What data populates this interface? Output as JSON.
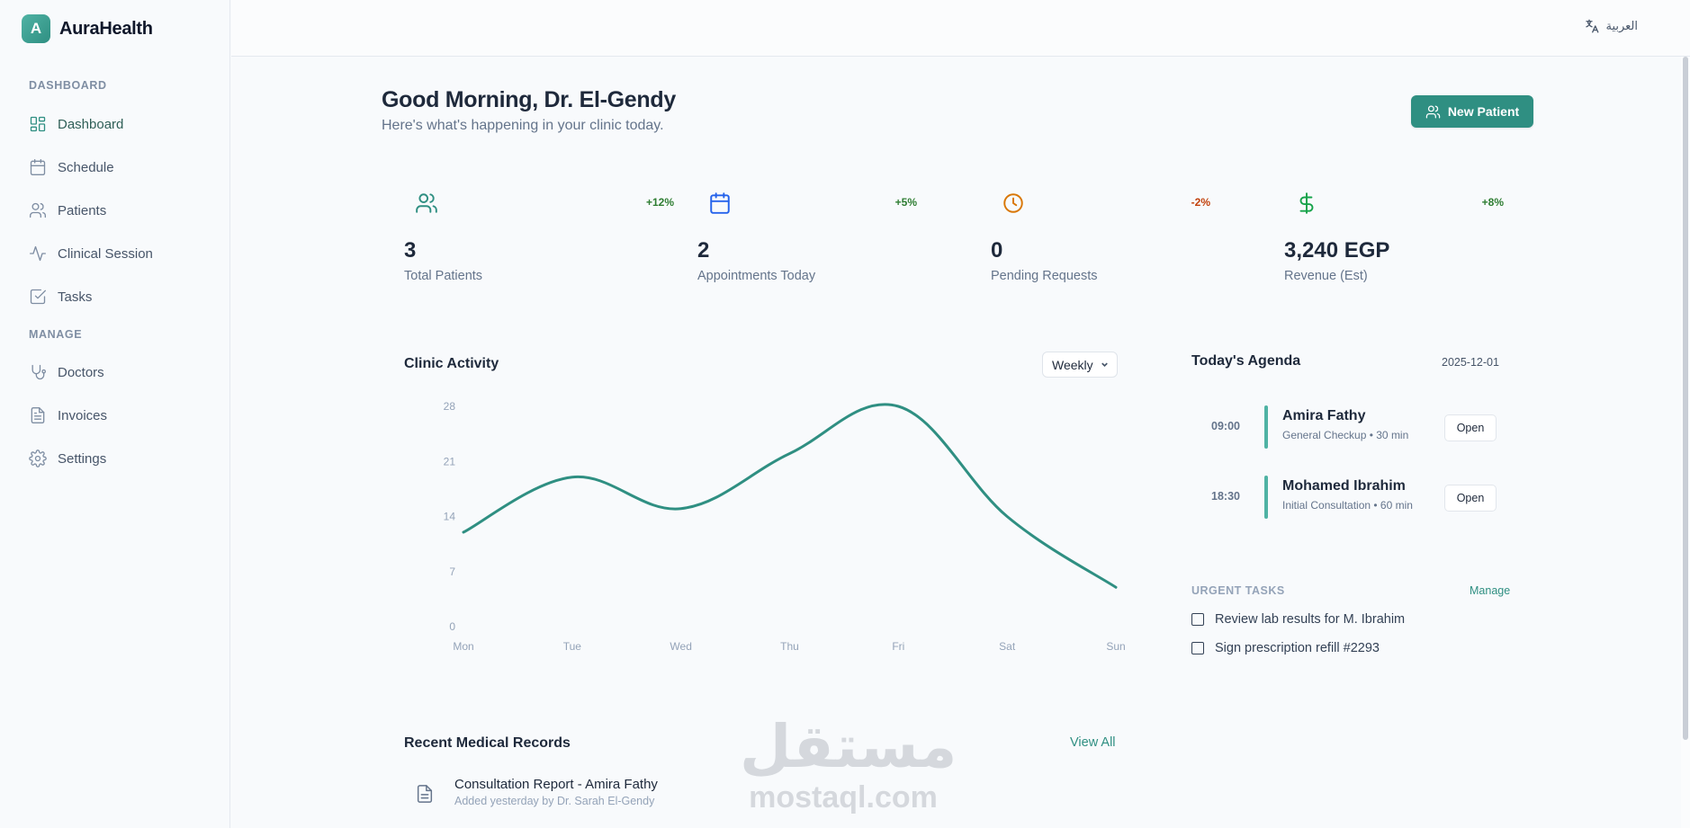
{
  "app": {
    "logo_letter": "A",
    "name": "AuraHealth"
  },
  "sidebar": {
    "sections": [
      {
        "title": "DASHBOARD"
      },
      {
        "title": "MANAGE"
      }
    ],
    "items": [
      {
        "label": "Dashboard",
        "icon": "dashboard-icon",
        "active": true
      },
      {
        "label": "Schedule",
        "icon": "calendar-icon"
      },
      {
        "label": "Patients",
        "icon": "users-icon"
      },
      {
        "label": "Clinical Session",
        "icon": "activity-icon"
      },
      {
        "label": "Tasks",
        "icon": "checkbox-icon"
      },
      {
        "label": "Doctors",
        "icon": "stethoscope-icon"
      },
      {
        "label": "Invoices",
        "icon": "file-text-icon"
      },
      {
        "label": "Settings",
        "icon": "gear-icon"
      }
    ]
  },
  "topbar": {
    "language_label": "العربية",
    "language_icon": "translate-icon"
  },
  "header": {
    "greeting": "Good Morning, Dr. El-Gendy",
    "subtitle": "Here's what's happening in your clinic today.",
    "new_patient_label": "New Patient"
  },
  "stats": [
    {
      "value": "3",
      "label": "Total Patients",
      "change": "+12%",
      "change_color": "#2e7d32",
      "icon": "users-icon",
      "icon_color": "#2f8f82"
    },
    {
      "value": "2",
      "label": "Appointments Today",
      "change": "+5%",
      "change_color": "#2e7d32",
      "icon": "calendar-icon",
      "icon_color": "#2563eb"
    },
    {
      "value": "0",
      "label": "Pending Requests",
      "change": "-2%",
      "change_color": "#c2410c",
      "icon": "clock-icon",
      "icon_color": "#d97706"
    },
    {
      "value": "3,240 EGP",
      "label": "Revenue (Est)",
      "change": "+8%",
      "change_color": "#2e7d32",
      "icon": "dollar-icon",
      "icon_color": "#16a34a"
    }
  ],
  "activity": {
    "title": "Clinic Activity",
    "period": "Weekly"
  },
  "chart_data": {
    "type": "line",
    "title": "Clinic Activity",
    "categories": [
      "Mon",
      "Tue",
      "Wed",
      "Thu",
      "Fri",
      "Sat",
      "Sun"
    ],
    "series": [
      {
        "values": [
          12,
          19,
          15,
          22,
          28,
          14,
          5
        ]
      }
    ],
    "yticks": [
      0,
      7,
      14,
      21,
      28
    ],
    "ylim": [
      0,
      28
    ],
    "line_color": "#2f8f82",
    "grid": false,
    "legend": "none"
  },
  "agenda": {
    "title": "Today's Agenda",
    "date": "2025-12-01",
    "items": [
      {
        "time": "09:00",
        "name": "Amira Fathy",
        "detail": "General Checkup • 30 min",
        "action": "Open"
      },
      {
        "time": "18:30",
        "name": "Mohamed Ibrahim",
        "detail": "Initial Consultation • 60 min",
        "action": "Open"
      }
    ]
  },
  "tasks": {
    "title": "URGENT TASKS",
    "manage_label": "Manage",
    "items": [
      {
        "label": "Review lab results for M. Ibrahim",
        "done": false
      },
      {
        "label": "Sign prescription refill #2293",
        "done": false
      }
    ]
  },
  "records": {
    "title": "Recent Medical Records",
    "view_all": "View All",
    "items": [
      {
        "title": "Consultation Report - Amira Fathy",
        "subtitle": "Added yesterday by Dr. Sarah El-Gendy",
        "icon": "file-icon"
      }
    ]
  },
  "watermark": {
    "arabic": "مستقل",
    "latin": "mostaql.com"
  }
}
